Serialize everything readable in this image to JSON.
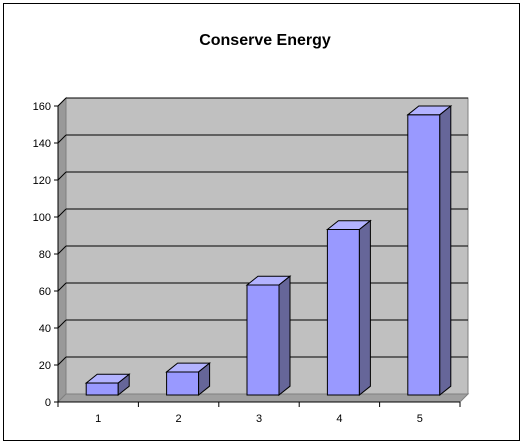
{
  "chart_data": {
    "type": "bar",
    "title": "Conserve Energy",
    "xlabel": "",
    "ylabel": "",
    "categories": [
      "1",
      "2",
      "3",
      "4",
      "5"
    ],
    "values": [
      7,
      13,
      60,
      90,
      152
    ],
    "ylim": [
      0,
      160
    ],
    "yticks": [
      0,
      20,
      40,
      60,
      80,
      100,
      120,
      140,
      160
    ],
    "grid": true,
    "legend": "none",
    "plot_background": "#c0c0c0",
    "bar_front_color": "#9999ff",
    "bar_top_color": "#b3b3ff",
    "bar_side_color": "#666699",
    "three_d": true
  }
}
